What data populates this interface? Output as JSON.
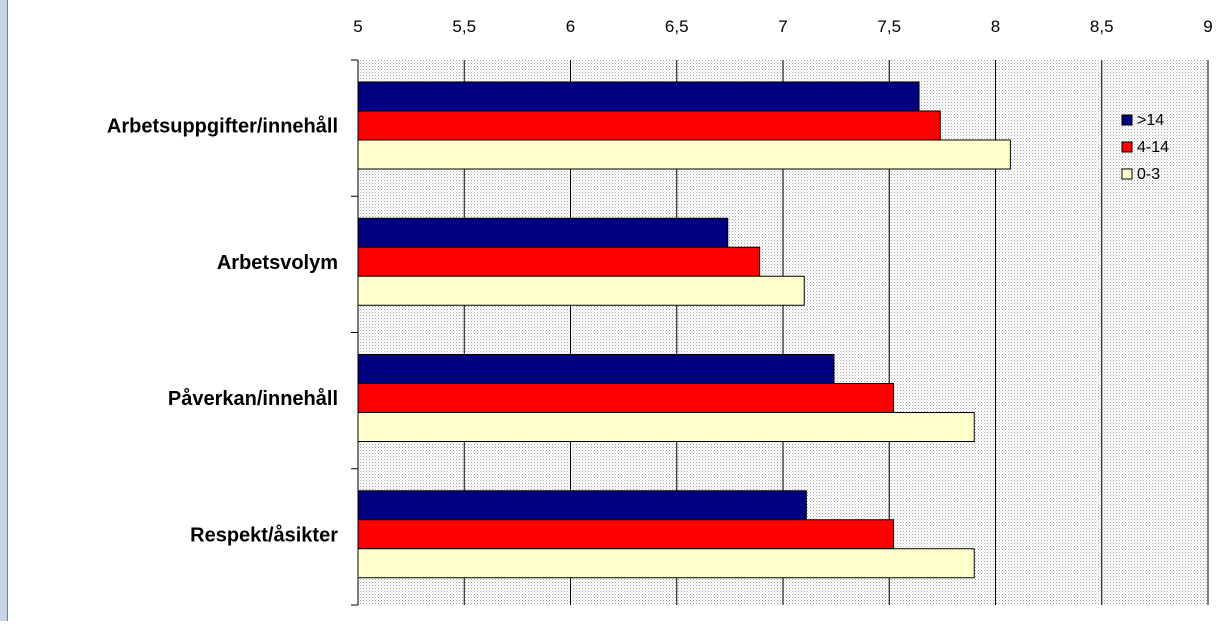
{
  "chart_data": {
    "type": "bar",
    "orientation": "horizontal",
    "title": "",
    "xlabel": "",
    "ylabel": "",
    "xlim": [
      5,
      9
    ],
    "x_ticks": [
      "5",
      "5,5",
      "6",
      "6,5",
      "7",
      "7,5",
      "8",
      "8,5",
      "9"
    ],
    "x_tick_values": [
      5,
      5.5,
      6,
      6.5,
      7,
      7.5,
      8,
      8.5,
      9
    ],
    "x_axis_position": "top",
    "grid": true,
    "legend_position": "right",
    "categories": [
      "Arbetsuppgifter/innehåll",
      "Arbetsvolym",
      "Påverkan/innehåll",
      "Respekt/åsikter"
    ],
    "series": [
      {
        "name": ">14",
        "color": "#000080",
        "values": [
          7.64,
          6.74,
          7.24,
          7.11
        ]
      },
      {
        "name": "4-14",
        "color": "#ff0000",
        "values": [
          7.74,
          6.89,
          7.52,
          7.52
        ]
      },
      {
        "name": "0-3",
        "color": "#ffffcc",
        "values": [
          8.07,
          7.1,
          7.9,
          7.9
        ]
      }
    ]
  },
  "colors": {
    "plot_background": "#d9d9d9",
    "gridline": "#000000",
    "bar_border": "#000000"
  }
}
